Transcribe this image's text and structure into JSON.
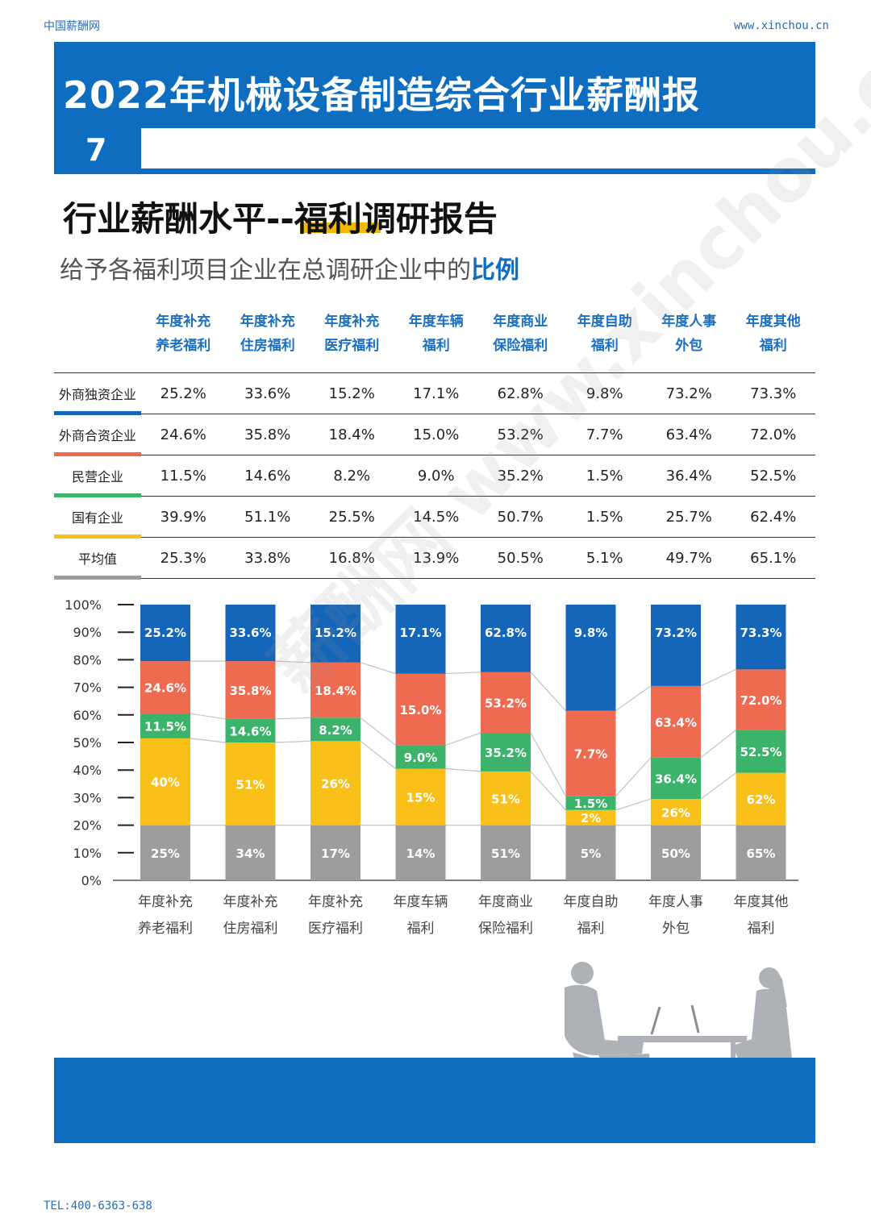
{
  "header": {
    "site_name": "中国薪酬网",
    "site_url": "www.xinchou.cn",
    "title": "2022年机械设备制造综合行业薪酬报",
    "page_number": "7"
  },
  "section": {
    "title": "行业薪酬水平--福利调研报告",
    "subtitle_prefix": "给予各福利项目企业在总调研企业中的",
    "subtitle_emph": "比例"
  },
  "table": {
    "columns": [
      [
        "年度补充",
        "养老福利"
      ],
      [
        "年度补充",
        "住房福利"
      ],
      [
        "年度补充",
        "医疗福利"
      ],
      [
        "年度车辆",
        "福利"
      ],
      [
        "年度商业",
        "保险福利"
      ],
      [
        "年度自助",
        "福利"
      ],
      [
        "年度人事",
        "外包"
      ],
      [
        "年度其他",
        "福利"
      ]
    ],
    "rows": [
      {
        "label": "外商独资企业",
        "color": "#1566b8",
        "values": [
          "25.2%",
          "33.6%",
          "15.2%",
          "17.1%",
          "62.8%",
          "9.8%",
          "73.2%",
          "73.3%"
        ]
      },
      {
        "label": "外商合资企业",
        "color": "#ee6b52",
        "values": [
          "24.6%",
          "35.8%",
          "18.4%",
          "15.0%",
          "53.2%",
          "7.7%",
          "63.4%",
          "72.0%"
        ]
      },
      {
        "label": "民营企业",
        "color": "#3cb36a",
        "values": [
          "11.5%",
          "14.6%",
          "8.2%",
          "9.0%",
          "35.2%",
          "1.5%",
          "36.4%",
          "52.5%"
        ]
      },
      {
        "label": "国有企业",
        "color": "#f9c01a",
        "values": [
          "39.9%",
          "51.1%",
          "25.5%",
          "14.5%",
          "50.7%",
          "1.5%",
          "25.7%",
          "62.4%"
        ]
      },
      {
        "label": "平均值",
        "color": "#9d9d9d",
        "values": [
          "25.3%",
          "33.8%",
          "16.8%",
          "13.9%",
          "50.5%",
          "5.1%",
          "49.7%",
          "65.1%"
        ]
      }
    ]
  },
  "chart_data": {
    "type": "bar",
    "stacked": true,
    "categories": [
      [
        "年度补充",
        "养老福利"
      ],
      [
        "年度补充",
        "住房福利"
      ],
      [
        "年度补充",
        "医疗福利"
      ],
      [
        "年度车辆",
        "福利"
      ],
      [
        "年度商业",
        "保险福利"
      ],
      [
        "年度自助",
        "福利"
      ],
      [
        "年度人事",
        "外包"
      ],
      [
        "年度其他",
        "福利"
      ]
    ],
    "y_ticks": [
      "0%",
      "10%",
      "20%",
      "30%",
      "40%",
      "50%",
      "60%",
      "70%",
      "80%",
      "90%",
      "100%"
    ],
    "ylim": [
      0,
      100
    ],
    "series": [
      {
        "color": "#9d9d9d",
        "labels": [
          "25%",
          "34%",
          "17%",
          "14%",
          "51%",
          "5%",
          "50%",
          "65%"
        ],
        "bounds": [
          [
            0,
            20
          ],
          [
            0,
            20
          ],
          [
            0,
            20
          ],
          [
            0,
            20
          ],
          [
            0,
            20
          ],
          [
            0,
            20
          ],
          [
            0,
            20
          ],
          [
            0,
            20
          ]
        ]
      },
      {
        "color": "#f9c01a",
        "labels": [
          "40%",
          "51%",
          "26%",
          "15%",
          "51%",
          "2%",
          "26%",
          "62%"
        ],
        "bounds": [
          [
            20,
            51.5
          ],
          [
            20,
            50
          ],
          [
            20,
            50.5
          ],
          [
            20,
            40.5
          ],
          [
            20,
            39.5
          ],
          [
            20,
            25.5
          ],
          [
            20,
            29.5
          ],
          [
            20,
            39
          ]
        ]
      },
      {
        "color": "#3cb36a",
        "labels": [
          "11.5%",
          "14.6%",
          "8.2%",
          "9.0%",
          "35.2%",
          "1.5%",
          "36.4%",
          "52.5%"
        ],
        "bounds": [
          [
            51.5,
            60.5
          ],
          [
            50,
            58.5
          ],
          [
            50.5,
            59
          ],
          [
            40.5,
            49
          ],
          [
            39.5,
            53.5
          ],
          [
            25.5,
            30.5
          ],
          [
            29.5,
            44.5
          ],
          [
            39,
            54.5
          ]
        ]
      },
      {
        "color": "#ee6b52",
        "labels": [
          "24.6%",
          "35.8%",
          "18.4%",
          "15.0%",
          "53.2%",
          "7.7%",
          "63.4%",
          "72.0%"
        ],
        "bounds": [
          [
            60.5,
            79.5
          ],
          [
            58.5,
            79.5
          ],
          [
            59,
            79
          ],
          [
            49,
            75
          ],
          [
            53.5,
            75.5
          ],
          [
            30.5,
            61.5
          ],
          [
            44.5,
            70.5
          ],
          [
            54.5,
            76.5
          ]
        ]
      },
      {
        "color": "#1566b8",
        "labels": [
          "25.2%",
          "33.6%",
          "15.2%",
          "17.1%",
          "62.8%",
          "9.8%",
          "73.2%",
          "73.3%"
        ],
        "bounds": [
          [
            79.5,
            100
          ],
          [
            79.5,
            100
          ],
          [
            79,
            100
          ],
          [
            75,
            100
          ],
          [
            75.5,
            100
          ],
          [
            61.5,
            100
          ],
          [
            70.5,
            100
          ],
          [
            76.5,
            100
          ]
        ]
      }
    ]
  },
  "footer": {
    "tel": "TEL:400-6363-638"
  },
  "watermark": "薪酬网 www.xinchou.cn",
  "colors": {
    "brand_blue": "#0f6dbf",
    "accent_yellow": "#f5b800"
  }
}
